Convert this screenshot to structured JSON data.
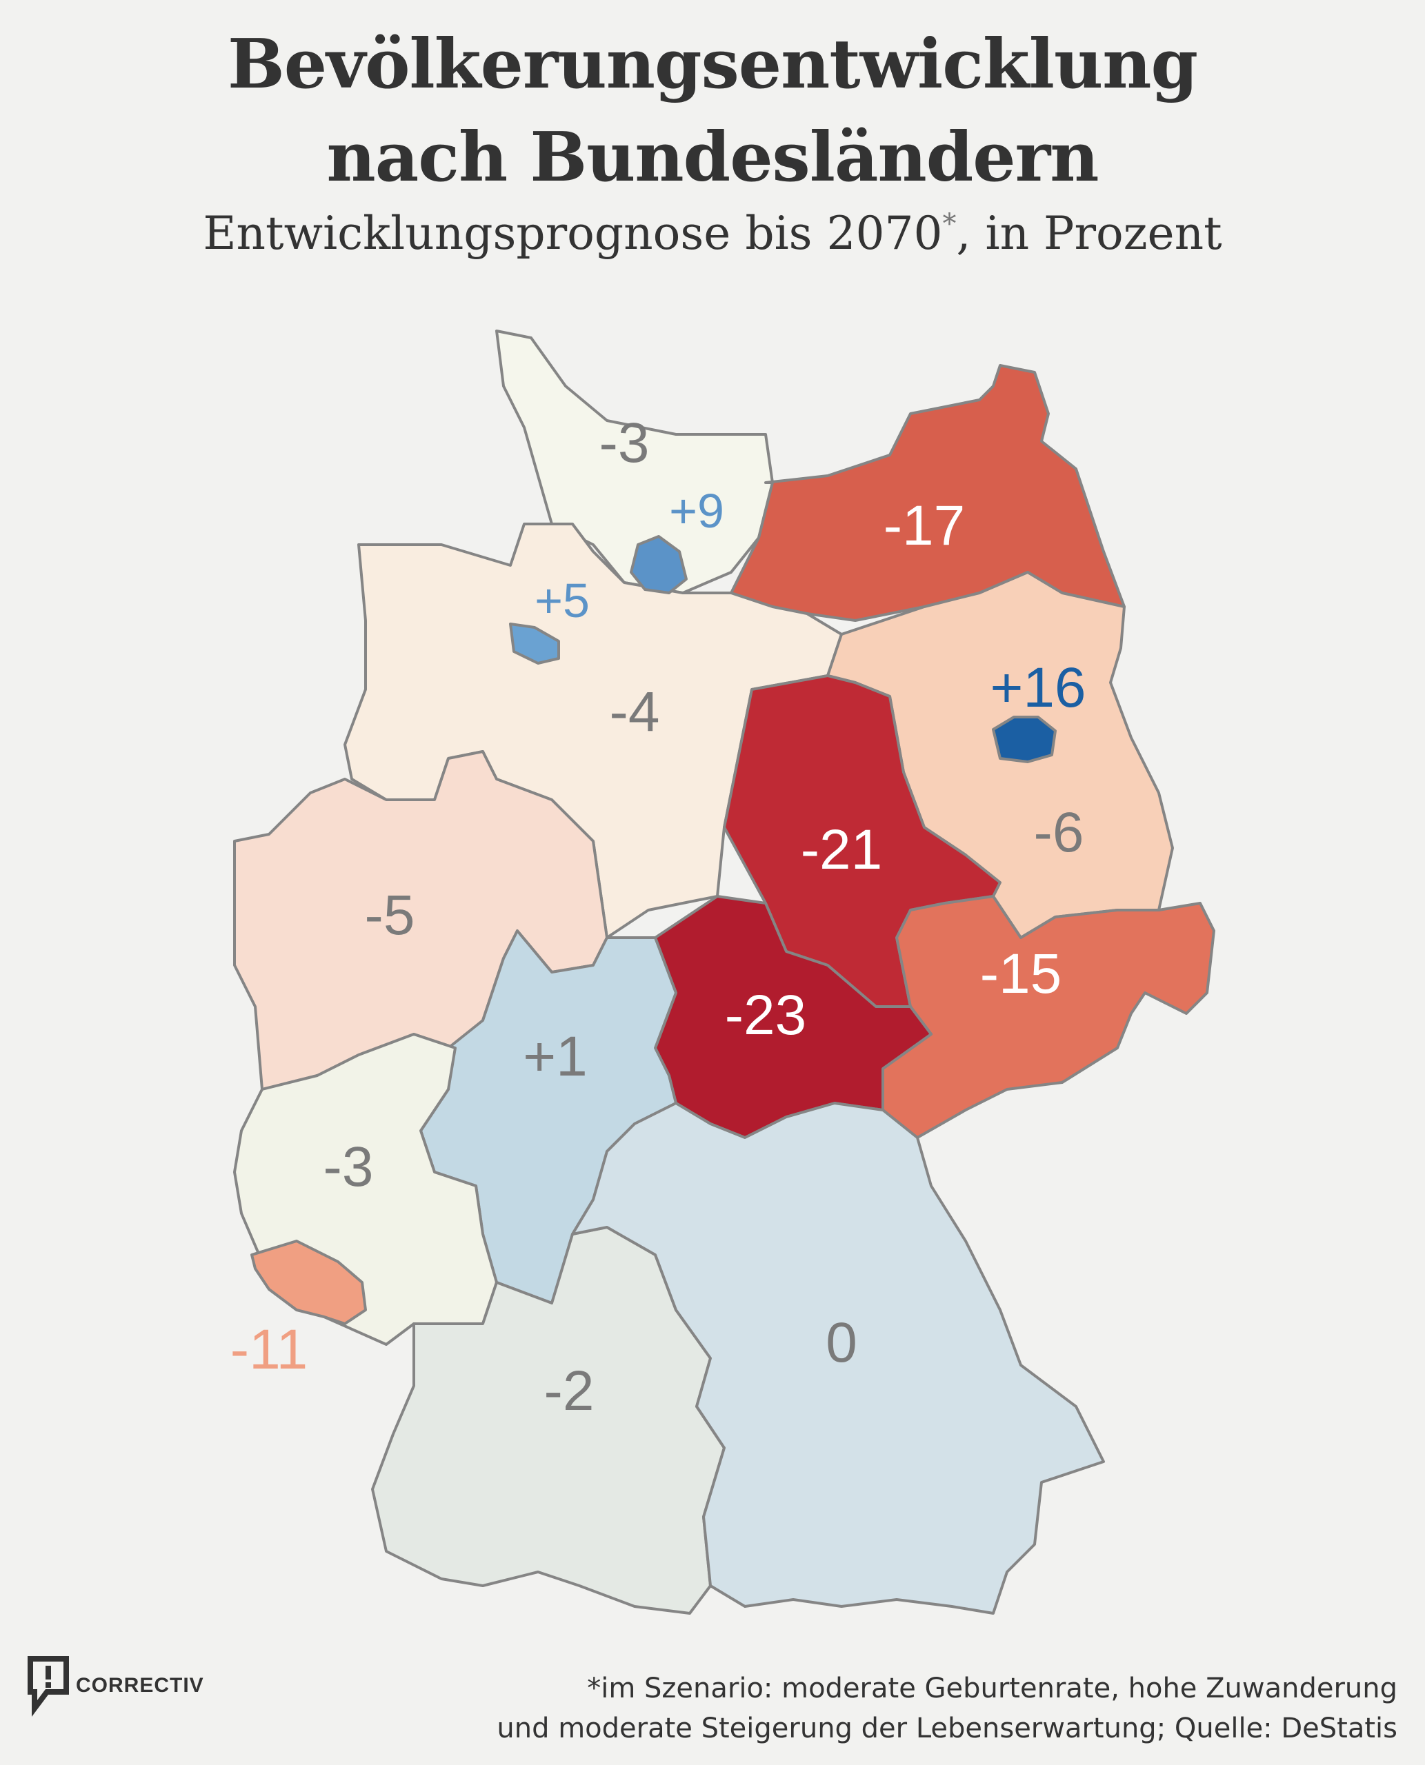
{
  "header": {
    "title_line_1": "Bevölkerungsentwicklung",
    "title_line_2": "nach Bundesländern",
    "subtitle_main": "Entwicklungsprognose bis 2070",
    "subtitle_mark": "*",
    "subtitle_rest": ", in Prozent"
  },
  "map_data": {
    "type": "choropleth",
    "unit": "Prozent",
    "regions": [
      {
        "id": "schleswig-holstein",
        "value": -3,
        "label": "-3",
        "fill": "#f5f6ec",
        "label_color": "#7a7a7a"
      },
      {
        "id": "hamburg",
        "value": 9,
        "label": "+9",
        "fill": "#5b93c8",
        "label_color": "#5b93c8"
      },
      {
        "id": "bremen",
        "value": 5,
        "label": "+5",
        "fill": "#6aa2d2",
        "label_color": "#5b93c8"
      },
      {
        "id": "mecklenburg-vorpommern",
        "value": -17,
        "label": "-17",
        "fill": "#d75f4d",
        "label_color": "#ffffff"
      },
      {
        "id": "niedersachsen",
        "value": -4,
        "label": "-4",
        "fill": "#f9ede0",
        "label_color": "#7a7a7a"
      },
      {
        "id": "brandenburg",
        "value": -6,
        "label": "-6",
        "fill": "#f8d0b8",
        "label_color": "#7a7a7a"
      },
      {
        "id": "berlin",
        "value": 16,
        "label": "+16",
        "fill": "#1b5fa3",
        "label_color": "#1b5fa3"
      },
      {
        "id": "sachsen-anhalt",
        "value": -21,
        "label": "-21",
        "fill": "#bf2a35",
        "label_color": "#ffffff"
      },
      {
        "id": "nordrhein-westfalen",
        "value": -5,
        "label": "-5",
        "fill": "#f8ddd0",
        "label_color": "#7a7a7a"
      },
      {
        "id": "hessen",
        "value": 1,
        "label": "+1",
        "fill": "#c3d9e4",
        "label_color": "#7a7a7a"
      },
      {
        "id": "thueringen",
        "value": -23,
        "label": "-23",
        "fill": "#b11c2e",
        "label_color": "#ffffff"
      },
      {
        "id": "sachsen",
        "value": -15,
        "label": "-15",
        "fill": "#e2735c",
        "label_color": "#ffffff"
      },
      {
        "id": "rheinland-pfalz",
        "value": -3,
        "label": "-3",
        "fill": "#f2f3e8",
        "label_color": "#7a7a7a"
      },
      {
        "id": "saarland",
        "value": -11,
        "label": "-11",
        "fill": "#f09f82",
        "label_color": "#f09f82"
      },
      {
        "id": "baden-wuerttemberg",
        "value": -2,
        "label": "-2",
        "fill": "#e4e9e4",
        "label_color": "#7a7a7a"
      },
      {
        "id": "bayern",
        "value": 0,
        "label": "0",
        "fill": "#d3e1e8",
        "label_color": "#7a7a7a"
      }
    ]
  },
  "footer": {
    "note_line_1": "*im Szenario: moderate Geburtenrate, hohe Zuwanderung",
    "note_line_2": "und moderate Steigerung der Lebenserwartung; Quelle: DeStatis",
    "logo_text": "CORRECTIV",
    "logo_icon": "speech-bubble-exclamation-icon"
  }
}
